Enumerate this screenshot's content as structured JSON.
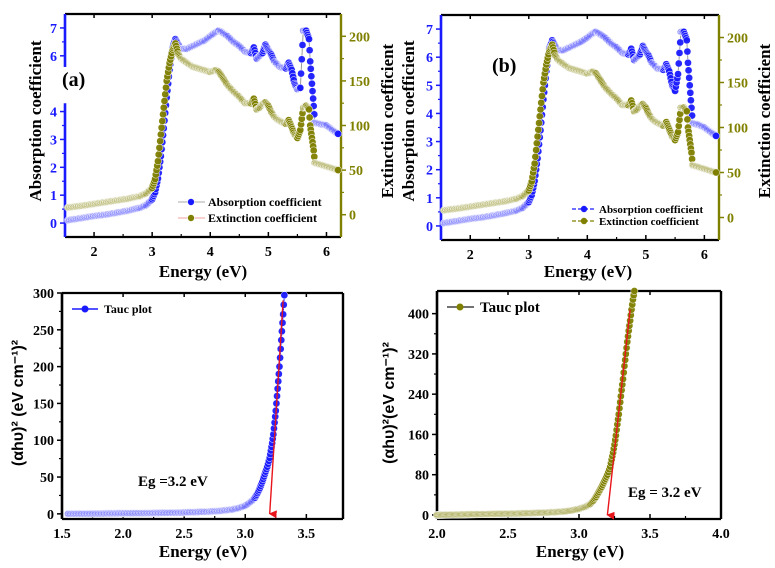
{
  "colors": {
    "blue": "#1a1aff",
    "olive": "#808000",
    "red": "#e8141b",
    "black": "#000000"
  },
  "chart_data": [
    {
      "id": "a",
      "type": "scatter",
      "panel_label": "(a)",
      "xlabel": "Energy (eV)",
      "ylabel": "Absorption coefficient",
      "y2label": "Extinction coefficient",
      "xlim": [
        1.5,
        6.25
      ],
      "ylim": [
        -0.5,
        7.5
      ],
      "y2lim": [
        -25,
        225
      ],
      "xticks": [
        "2",
        "3",
        "4",
        "5",
        "6"
      ],
      "xtick_values": [
        2,
        3,
        4,
        5,
        6
      ],
      "yticks": [
        "0",
        "1",
        "2",
        "3",
        "4",
        "6",
        "7"
      ],
      "ytick_values": [
        0,
        1,
        2,
        3,
        4,
        6,
        7
      ],
      "y2ticks": [
        "0",
        "50",
        "100",
        "150",
        "200"
      ],
      "y2tick_values": [
        0,
        50,
        100,
        150,
        200
      ],
      "legend": [
        "Absorption coefficient",
        "Extinction coefficient"
      ],
      "legend_position": "bottom-right",
      "series": [
        {
          "name": "Absorption coefficient",
          "axis": "left",
          "x": [
            1.55,
            1.8,
            2.0,
            2.2,
            2.4,
            2.6,
            2.8,
            2.9,
            3.0,
            3.05,
            3.1,
            3.15,
            3.2,
            3.25,
            3.3,
            3.35,
            3.4,
            3.45,
            3.5,
            3.6,
            3.7,
            3.8,
            3.9,
            4.0,
            4.1,
            4.15,
            4.2,
            4.3,
            4.4,
            4.5,
            4.6,
            4.7,
            4.75,
            4.8,
            4.85,
            4.9,
            4.95,
            5.0,
            5.05,
            5.1,
            5.15,
            5.2,
            5.3,
            5.35,
            5.4,
            5.45,
            5.5,
            5.55,
            5.6,
            5.65,
            5.7,
            5.72,
            5.75,
            5.78,
            5.8,
            5.9,
            6.0,
            6.1,
            6.2
          ],
          "y": [
            0.1,
            0.18,
            0.25,
            0.3,
            0.37,
            0.45,
            0.55,
            0.65,
            0.85,
            1.1,
            1.6,
            2.4,
            3.4,
            4.5,
            5.5,
            6.3,
            6.6,
            6.4,
            6.25,
            6.25,
            6.35,
            6.45,
            6.55,
            6.7,
            6.85,
            6.9,
            6.85,
            6.7,
            6.5,
            6.35,
            6.15,
            6.1,
            6.3,
            5.9,
            6.0,
            6.1,
            6.4,
            6.2,
            6.05,
            5.8,
            5.7,
            5.6,
            5.55,
            5.75,
            5.5,
            5.0,
            4.8,
            4.85,
            6.9,
            6.9,
            6.6,
            5.8,
            5.0,
            4.2,
            3.6,
            3.55,
            3.5,
            3.35,
            3.2
          ]
        },
        {
          "name": "Extinction coefficient",
          "axis": "right",
          "x": [
            1.55,
            1.8,
            2.0,
            2.2,
            2.4,
            2.6,
            2.8,
            2.9,
            3.0,
            3.05,
            3.1,
            3.15,
            3.2,
            3.25,
            3.3,
            3.35,
            3.4,
            3.45,
            3.5,
            3.6,
            3.7,
            3.8,
            3.9,
            4.0,
            4.1,
            4.15,
            4.2,
            4.3,
            4.4,
            4.5,
            4.6,
            4.7,
            4.75,
            4.8,
            4.85,
            4.9,
            4.95,
            5.0,
            5.05,
            5.1,
            5.15,
            5.2,
            5.3,
            5.35,
            5.4,
            5.45,
            5.5,
            5.55,
            5.6,
            5.65,
            5.7,
            5.72,
            5.75,
            5.78,
            5.8,
            5.9,
            6.0,
            6.1,
            6.2
          ],
          "y": [
            8,
            10,
            12,
            14,
            16,
            18,
            21,
            24,
            30,
            40,
            60,
            90,
            120,
            150,
            170,
            185,
            192,
            180,
            175,
            170,
            166,
            164,
            162,
            160,
            162,
            160,
            155,
            145,
            138,
            132,
            125,
            125,
            130,
            118,
            120,
            124,
            126,
            122,
            115,
            110,
            107,
            105,
            102,
            106,
            98,
            90,
            86,
            95,
            120,
            122,
            118,
            100,
            86,
            72,
            58,
            56,
            54,
            52,
            50
          ]
        }
      ]
    },
    {
      "id": "b",
      "type": "scatter",
      "panel_label": "(b)",
      "xlabel": "Energy (eV)",
      "ylabel": "Absorption coefficient",
      "y2label": "Extinction coefficient",
      "xlim": [
        1.5,
        6.25
      ],
      "ylim": [
        -0.5,
        7.5
      ],
      "y2lim": [
        -25,
        225
      ],
      "xticks": [
        "2",
        "3",
        "4",
        "5",
        "6"
      ],
      "xtick_values": [
        2,
        3,
        4,
        5,
        6
      ],
      "yticks": [
        "0",
        "1",
        "2",
        "3",
        "4",
        "5",
        "6",
        "7"
      ],
      "ytick_values": [
        0,
        1,
        2,
        3,
        4,
        5,
        6,
        7
      ],
      "y2ticks": [
        "0",
        "50",
        "100",
        "150",
        "200"
      ],
      "y2tick_values": [
        0,
        50,
        100,
        150,
        200
      ],
      "legend": [
        "Absorption coefficient",
        "Extinction coefficient"
      ],
      "legend_position": "bottom-right",
      "series": [
        {
          "name": "Absorption coefficient",
          "axis": "left",
          "x": [
            1.55,
            1.8,
            2.0,
            2.2,
            2.4,
            2.6,
            2.8,
            2.9,
            3.0,
            3.05,
            3.1,
            3.15,
            3.2,
            3.25,
            3.3,
            3.35,
            3.4,
            3.45,
            3.5,
            3.6,
            3.7,
            3.8,
            3.9,
            4.0,
            4.1,
            4.15,
            4.2,
            4.3,
            4.4,
            4.5,
            4.6,
            4.7,
            4.75,
            4.8,
            4.85,
            4.9,
            4.95,
            5.0,
            5.05,
            5.1,
            5.15,
            5.2,
            5.3,
            5.35,
            5.4,
            5.45,
            5.5,
            5.55,
            5.6,
            5.65,
            5.7,
            5.72,
            5.75,
            5.78,
            5.8,
            5.9,
            6.0,
            6.1,
            6.2
          ],
          "y": [
            0.1,
            0.18,
            0.25,
            0.3,
            0.37,
            0.45,
            0.55,
            0.65,
            0.85,
            1.1,
            1.6,
            2.4,
            3.4,
            4.5,
            5.5,
            6.3,
            6.6,
            6.4,
            6.25,
            6.25,
            6.35,
            6.45,
            6.55,
            6.7,
            6.85,
            6.9,
            6.85,
            6.7,
            6.5,
            6.35,
            6.15,
            6.1,
            6.3,
            5.9,
            6.0,
            6.1,
            6.4,
            6.2,
            6.05,
            5.8,
            5.7,
            5.6,
            5.55,
            5.75,
            5.5,
            5.0,
            4.8,
            5.4,
            6.9,
            6.9,
            6.6,
            5.8,
            5.0,
            4.2,
            3.65,
            3.6,
            3.5,
            3.35,
            3.2
          ]
        },
        {
          "name": "Extinction coefficient",
          "axis": "right",
          "x": [
            1.55,
            1.8,
            2.0,
            2.2,
            2.4,
            2.6,
            2.8,
            2.9,
            3.0,
            3.05,
            3.1,
            3.15,
            3.2,
            3.25,
            3.3,
            3.35,
            3.4,
            3.45,
            3.5,
            3.6,
            3.7,
            3.8,
            3.9,
            4.0,
            4.1,
            4.15,
            4.2,
            4.3,
            4.4,
            4.5,
            4.6,
            4.7,
            4.75,
            4.8,
            4.85,
            4.9,
            4.95,
            5.0,
            5.05,
            5.1,
            5.15,
            5.2,
            5.3,
            5.35,
            5.4,
            5.45,
            5.5,
            5.55,
            5.6,
            5.65,
            5.7,
            5.72,
            5.75,
            5.78,
            5.8,
            5.9,
            6.0,
            6.1,
            6.2
          ],
          "y": [
            8,
            10,
            12,
            14,
            16,
            18,
            21,
            24,
            30,
            40,
            60,
            90,
            120,
            150,
            170,
            185,
            192,
            180,
            175,
            170,
            166,
            164,
            162,
            160,
            162,
            160,
            155,
            145,
            138,
            132,
            125,
            125,
            130,
            118,
            120,
            124,
            126,
            122,
            115,
            110,
            107,
            105,
            102,
            106,
            98,
            90,
            86,
            95,
            122,
            122,
            118,
            100,
            86,
            72,
            58,
            56,
            54,
            52,
            50
          ]
        }
      ]
    },
    {
      "id": "c",
      "type": "scatter",
      "xlabel": "Energy (eV)",
      "ylabel": "(αhυ)² (eV cm⁻¹)²",
      "xlim": [
        1.5,
        3.8
      ],
      "ylim": [
        -7,
        300
      ],
      "xticks": [
        "1.5",
        "2.0",
        "2.5",
        "3.0",
        "3.5"
      ],
      "xtick_values": [
        1.5,
        2.0,
        2.5,
        3.0,
        3.5
      ],
      "yticks": [
        "0",
        "50",
        "100",
        "150",
        "200",
        "250",
        "300"
      ],
      "ytick_values": [
        0,
        50,
        100,
        150,
        200,
        250,
        300
      ],
      "legend": [
        "Tauc plot"
      ],
      "legend_position": "top-left",
      "annotation": "Eg =3.2 eV",
      "fit_line": {
        "x": [
          3.2,
          3.31
        ],
        "y": [
          0,
          290
        ],
        "intercept_eV": 3.2
      },
      "series": [
        {
          "name": "Tauc plot",
          "x": [
            1.55,
            1.7,
            1.9,
            2.1,
            2.3,
            2.5,
            2.7,
            2.8,
            2.9,
            2.95,
            3.0,
            3.05,
            3.08,
            3.1,
            3.12,
            3.14,
            3.16,
            3.18,
            3.2,
            3.21,
            3.22,
            3.23,
            3.24,
            3.25,
            3.26,
            3.27,
            3.28,
            3.29,
            3.3,
            3.31,
            3.32
          ],
          "y": [
            0,
            0.2,
            0.5,
            0.8,
            1.2,
            1.8,
            3,
            4,
            6,
            8,
            11,
            17,
            22,
            28,
            35,
            44,
            54,
            64,
            76,
            86,
            96,
            108,
            124,
            140,
            160,
            180,
            200,
            224,
            248,
            271,
            297
          ]
        }
      ]
    },
    {
      "id": "d",
      "type": "scatter",
      "xlabel": "Energy (eV)",
      "ylabel": "(αhυ)²(eV cm⁻¹)²",
      "xlim": [
        2.0,
        4.0
      ],
      "ylim": [
        -8,
        445
      ],
      "xticks": [
        "2.0",
        "2.5",
        "3.0",
        "3.5",
        "4.0"
      ],
      "xtick_values": [
        2.0,
        2.5,
        3.0,
        3.5,
        4.0
      ],
      "yticks": [
        "0",
        "80",
        "160",
        "240",
        "320",
        "400"
      ],
      "ytick_values": [
        0,
        80,
        160,
        240,
        320,
        400
      ],
      "legend": [
        "Tauc plot"
      ],
      "legend_position": "top-left",
      "annotation": "Eg = 3.2 eV",
      "fit_line": {
        "x": [
          3.2,
          3.36
        ],
        "y": [
          0,
          408
        ],
        "intercept_eV": 3.2
      },
      "series": [
        {
          "name": "Tauc plot",
          "x": [
            2.0,
            2.2,
            2.4,
            2.6,
            2.8,
            2.9,
            2.95,
            3.0,
            3.05,
            3.08,
            3.1,
            3.12,
            3.14,
            3.16,
            3.18,
            3.2,
            3.22,
            3.23,
            3.24,
            3.25,
            3.26,
            3.27,
            3.28,
            3.29,
            3.3,
            3.31,
            3.32,
            3.33,
            3.34,
            3.35,
            3.36,
            3.37,
            3.38,
            3.39
          ],
          "y": [
            0,
            1,
            2,
            3,
            5,
            7,
            9,
            12,
            17,
            22,
            28,
            36,
            46,
            56,
            68,
            80,
            96,
            110,
            124,
            140,
            158,
            180,
            200,
            224,
            248,
            270,
            296,
            320,
            344,
            366,
            386,
            408,
            428,
            445
          ]
        }
      ]
    }
  ]
}
